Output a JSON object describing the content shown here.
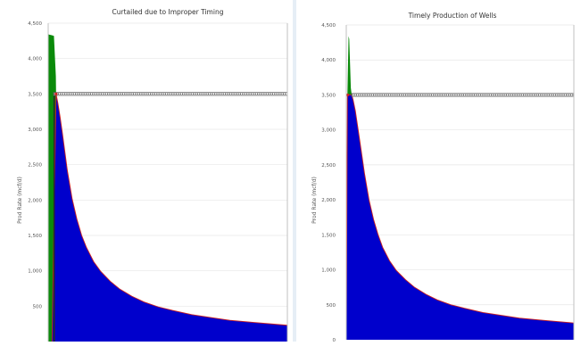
{
  "chart_data": [
    {
      "type": "area",
      "title": "Curtailed due to Improper Timing",
      "ylabel": "Prod Rate (mcf/d)",
      "xlabel": "",
      "ylim": [
        0,
        4500
      ],
      "yticks": [
        "500",
        "1,000",
        "1,500",
        "2,000",
        "2,500",
        "3,000",
        "3,500",
        "4,000",
        "4,500"
      ],
      "grid": true,
      "capacity_line": {
        "value": 3500,
        "color": "#555555"
      },
      "series": [
        {
          "color": "#0a8a0a",
          "x": [
            0,
            0.3,
            1.5,
            2.4,
            3.2,
            3.3,
            3.4
          ],
          "values": [
            4350,
            4340,
            4330,
            4320,
            3750,
            3500,
            3500
          ]
        },
        {
          "color": "#0000cc",
          "x": [
            1.6,
            3.3,
            4,
            5,
            6,
            8,
            10,
            12,
            14,
            16,
            19,
            22,
            26,
            30,
            35,
            40,
            46,
            52,
            60,
            68,
            76,
            86,
            100
          ],
          "values": [
            0,
            3500,
            3380,
            3170,
            2930,
            2420,
            2020,
            1730,
            1500,
            1330,
            1130,
            990,
            850,
            740,
            640,
            560,
            490,
            440,
            380,
            340,
            300,
            270,
            230
          ]
        }
      ]
    },
    {
      "type": "area",
      "title": "Timely Production of Wells",
      "ylabel": "Prod Rate (mcf/d)",
      "xlabel": "",
      "ylim": [
        0,
        4500
      ],
      "yticks": [
        "0",
        "500",
        "1,000",
        "1,500",
        "2,000",
        "2,500",
        "3,000",
        "3,500",
        "4,000",
        "4,500"
      ],
      "grid": true,
      "capacity_line": {
        "value": 3500,
        "color": "#555555"
      },
      "series": [
        {
          "color": "#0a8a0a",
          "x": [
            0.5,
            1.0,
            1.3,
            1.6,
            2.0,
            2.4
          ],
          "values": [
            3500,
            4340,
            4300,
            4000,
            3600,
            3500
          ]
        },
        {
          "color": "#0000cc",
          "x": [
            0,
            0.5,
            1.3,
            2.4,
            3,
            4,
            5,
            6,
            8,
            10,
            12,
            14,
            16,
            19,
            22,
            26,
            30,
            35,
            40,
            46,
            52,
            60,
            68,
            76,
            86,
            100
          ],
          "values": [
            0,
            3500,
            3500,
            3500,
            3430,
            3270,
            3050,
            2830,
            2380,
            2000,
            1720,
            1500,
            1320,
            1130,
            990,
            860,
            750,
            650,
            570,
            500,
            450,
            390,
            350,
            310,
            280,
            240
          ]
        }
      ]
    }
  ]
}
